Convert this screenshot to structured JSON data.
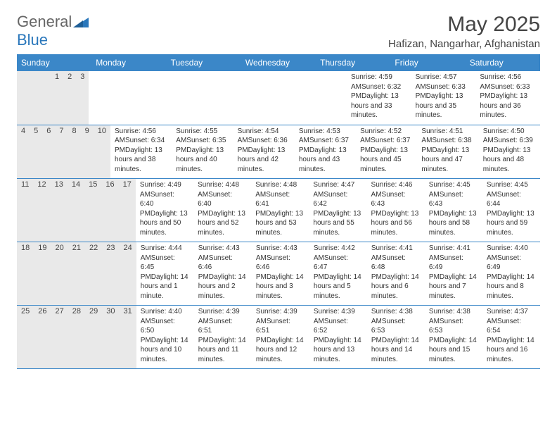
{
  "logo": {
    "text_general": "General",
    "text_blue": "Blue"
  },
  "title": "May 2025",
  "location": "Hafizan, Nangarhar, Afghanistan",
  "colors": {
    "header_bg": "#3b87c8",
    "header_text": "#ffffff",
    "daynum_bg": "#e9e9e9",
    "rule": "#3b87c8",
    "text": "#333333"
  },
  "day_headers": [
    "Sunday",
    "Monday",
    "Tuesday",
    "Wednesday",
    "Thursday",
    "Friday",
    "Saturday"
  ],
  "weeks": [
    [
      {
        "n": "",
        "sunrise": "",
        "sunset": "",
        "daylight": ""
      },
      {
        "n": "",
        "sunrise": "",
        "sunset": "",
        "daylight": ""
      },
      {
        "n": "",
        "sunrise": "",
        "sunset": "",
        "daylight": ""
      },
      {
        "n": "",
        "sunrise": "",
        "sunset": "",
        "daylight": ""
      },
      {
        "n": "1",
        "sunrise": "Sunrise: 4:59 AM",
        "sunset": "Sunset: 6:32 PM",
        "daylight": "Daylight: 13 hours and 33 minutes."
      },
      {
        "n": "2",
        "sunrise": "Sunrise: 4:57 AM",
        "sunset": "Sunset: 6:33 PM",
        "daylight": "Daylight: 13 hours and 35 minutes."
      },
      {
        "n": "3",
        "sunrise": "Sunrise: 4:56 AM",
        "sunset": "Sunset: 6:33 PM",
        "daylight": "Daylight: 13 hours and 36 minutes."
      }
    ],
    [
      {
        "n": "4",
        "sunrise": "Sunrise: 4:56 AM",
        "sunset": "Sunset: 6:34 PM",
        "daylight": "Daylight: 13 hours and 38 minutes."
      },
      {
        "n": "5",
        "sunrise": "Sunrise: 4:55 AM",
        "sunset": "Sunset: 6:35 PM",
        "daylight": "Daylight: 13 hours and 40 minutes."
      },
      {
        "n": "6",
        "sunrise": "Sunrise: 4:54 AM",
        "sunset": "Sunset: 6:36 PM",
        "daylight": "Daylight: 13 hours and 42 minutes."
      },
      {
        "n": "7",
        "sunrise": "Sunrise: 4:53 AM",
        "sunset": "Sunset: 6:37 PM",
        "daylight": "Daylight: 13 hours and 43 minutes."
      },
      {
        "n": "8",
        "sunrise": "Sunrise: 4:52 AM",
        "sunset": "Sunset: 6:37 PM",
        "daylight": "Daylight: 13 hours and 45 minutes."
      },
      {
        "n": "9",
        "sunrise": "Sunrise: 4:51 AM",
        "sunset": "Sunset: 6:38 PM",
        "daylight": "Daylight: 13 hours and 47 minutes."
      },
      {
        "n": "10",
        "sunrise": "Sunrise: 4:50 AM",
        "sunset": "Sunset: 6:39 PM",
        "daylight": "Daylight: 13 hours and 48 minutes."
      }
    ],
    [
      {
        "n": "11",
        "sunrise": "Sunrise: 4:49 AM",
        "sunset": "Sunset: 6:40 PM",
        "daylight": "Daylight: 13 hours and 50 minutes."
      },
      {
        "n": "12",
        "sunrise": "Sunrise: 4:48 AM",
        "sunset": "Sunset: 6:40 PM",
        "daylight": "Daylight: 13 hours and 52 minutes."
      },
      {
        "n": "13",
        "sunrise": "Sunrise: 4:48 AM",
        "sunset": "Sunset: 6:41 PM",
        "daylight": "Daylight: 13 hours and 53 minutes."
      },
      {
        "n": "14",
        "sunrise": "Sunrise: 4:47 AM",
        "sunset": "Sunset: 6:42 PM",
        "daylight": "Daylight: 13 hours and 55 minutes."
      },
      {
        "n": "15",
        "sunrise": "Sunrise: 4:46 AM",
        "sunset": "Sunset: 6:43 PM",
        "daylight": "Daylight: 13 hours and 56 minutes."
      },
      {
        "n": "16",
        "sunrise": "Sunrise: 4:45 AM",
        "sunset": "Sunset: 6:43 PM",
        "daylight": "Daylight: 13 hours and 58 minutes."
      },
      {
        "n": "17",
        "sunrise": "Sunrise: 4:45 AM",
        "sunset": "Sunset: 6:44 PM",
        "daylight": "Daylight: 13 hours and 59 minutes."
      }
    ],
    [
      {
        "n": "18",
        "sunrise": "Sunrise: 4:44 AM",
        "sunset": "Sunset: 6:45 PM",
        "daylight": "Daylight: 14 hours and 1 minute."
      },
      {
        "n": "19",
        "sunrise": "Sunrise: 4:43 AM",
        "sunset": "Sunset: 6:46 PM",
        "daylight": "Daylight: 14 hours and 2 minutes."
      },
      {
        "n": "20",
        "sunrise": "Sunrise: 4:43 AM",
        "sunset": "Sunset: 6:46 PM",
        "daylight": "Daylight: 14 hours and 3 minutes."
      },
      {
        "n": "21",
        "sunrise": "Sunrise: 4:42 AM",
        "sunset": "Sunset: 6:47 PM",
        "daylight": "Daylight: 14 hours and 5 minutes."
      },
      {
        "n": "22",
        "sunrise": "Sunrise: 4:41 AM",
        "sunset": "Sunset: 6:48 PM",
        "daylight": "Daylight: 14 hours and 6 minutes."
      },
      {
        "n": "23",
        "sunrise": "Sunrise: 4:41 AM",
        "sunset": "Sunset: 6:49 PM",
        "daylight": "Daylight: 14 hours and 7 minutes."
      },
      {
        "n": "24",
        "sunrise": "Sunrise: 4:40 AM",
        "sunset": "Sunset: 6:49 PM",
        "daylight": "Daylight: 14 hours and 8 minutes."
      }
    ],
    [
      {
        "n": "25",
        "sunrise": "Sunrise: 4:40 AM",
        "sunset": "Sunset: 6:50 PM",
        "daylight": "Daylight: 14 hours and 10 minutes."
      },
      {
        "n": "26",
        "sunrise": "Sunrise: 4:39 AM",
        "sunset": "Sunset: 6:51 PM",
        "daylight": "Daylight: 14 hours and 11 minutes."
      },
      {
        "n": "27",
        "sunrise": "Sunrise: 4:39 AM",
        "sunset": "Sunset: 6:51 PM",
        "daylight": "Daylight: 14 hours and 12 minutes."
      },
      {
        "n": "28",
        "sunrise": "Sunrise: 4:39 AM",
        "sunset": "Sunset: 6:52 PM",
        "daylight": "Daylight: 14 hours and 13 minutes."
      },
      {
        "n": "29",
        "sunrise": "Sunrise: 4:38 AM",
        "sunset": "Sunset: 6:53 PM",
        "daylight": "Daylight: 14 hours and 14 minutes."
      },
      {
        "n": "30",
        "sunrise": "Sunrise: 4:38 AM",
        "sunset": "Sunset: 6:53 PM",
        "daylight": "Daylight: 14 hours and 15 minutes."
      },
      {
        "n": "31",
        "sunrise": "Sunrise: 4:37 AM",
        "sunset": "Sunset: 6:54 PM",
        "daylight": "Daylight: 14 hours and 16 minutes."
      }
    ]
  ]
}
